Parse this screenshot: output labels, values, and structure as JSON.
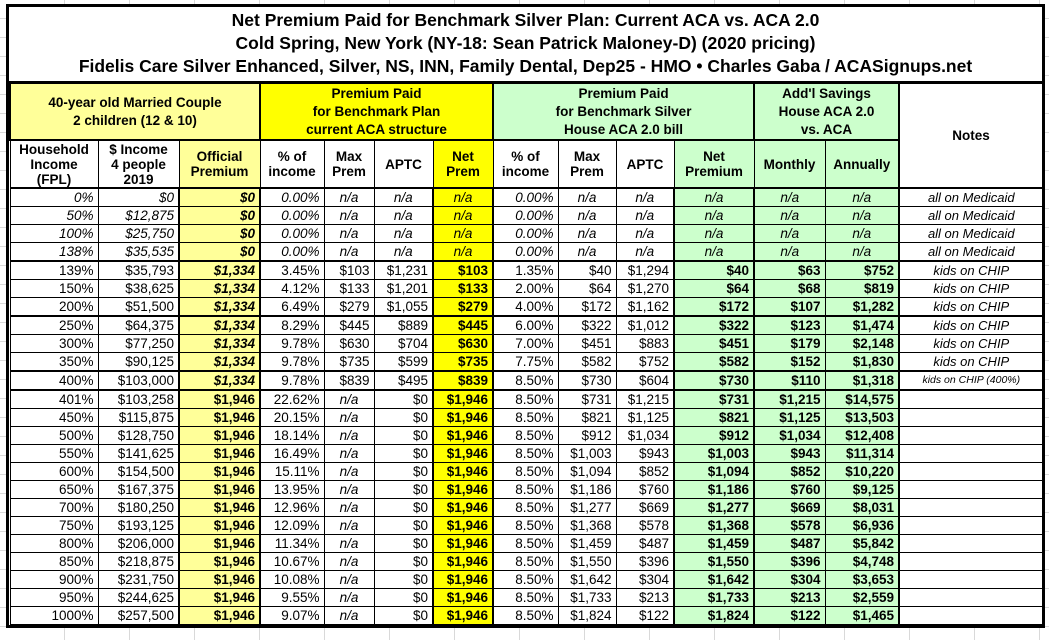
{
  "title": {
    "line1": "Net Premium Paid for Benchmark Silver Plan: Current ACA vs. ACA 2.0",
    "line2": "Cold Spring, New York (NY-18: Sean Patrick Maloney-D) (2020 pricing)",
    "line3": "Fidelis Care Silver Enhanced, Silver, NS, INN, Family Dental, Dep25 - HMO • Charles Gaba / ACASignups.net"
  },
  "groups": {
    "household": "40-year old Married Couple\n2 children (12 & 10)",
    "aca": "Premium Paid\nfor Benchmark Plan\ncurrent ACA structure",
    "aca2": "Premium Paid\nfor Benchmark Silver\nHouse ACA 2.0 bill",
    "savings": "Add'l Savings\nHouse ACA 2.0\nvs. ACA",
    "notes": "Notes"
  },
  "columns": [
    "Household\nIncome\n(FPL)",
    "$ Income\n4 people\n2019",
    "Official\nPremium",
    "% of\nincome",
    "Max\nPrem",
    "APTC",
    "Net\nPrem",
    "% of\nincome",
    "Max\nPrem",
    "APTC",
    "Net\nPremium",
    "Monthly",
    "Annually"
  ],
  "colors": {
    "pale_yellow": "#ffff99",
    "bright_yellow": "#ffff00",
    "light_green": "#ccffcc",
    "border": "#000000",
    "text": "#000000"
  },
  "rows": [
    {
      "group": "medicaid",
      "cells": [
        "0%",
        "$0",
        "$0",
        "0.00%",
        "n/a",
        "n/a",
        "n/a",
        "0.00%",
        "n/a",
        "n/a",
        "n/a",
        "n/a",
        "n/a",
        "all on Medicaid"
      ]
    },
    {
      "group": "medicaid",
      "cells": [
        "50%",
        "$12,875",
        "$0",
        "0.00%",
        "n/a",
        "n/a",
        "n/a",
        "0.00%",
        "n/a",
        "n/a",
        "n/a",
        "n/a",
        "n/a",
        "all on Medicaid"
      ]
    },
    {
      "group": "medicaid",
      "cells": [
        "100%",
        "$25,750",
        "$0",
        "0.00%",
        "n/a",
        "n/a",
        "n/a",
        "0.00%",
        "n/a",
        "n/a",
        "n/a",
        "n/a",
        "n/a",
        "all on Medicaid"
      ]
    },
    {
      "group": "medicaid",
      "cells": [
        "138%",
        "$35,535",
        "$0",
        "0.00%",
        "n/a",
        "n/a",
        "n/a",
        "0.00%",
        "n/a",
        "n/a",
        "n/a",
        "n/a",
        "n/a",
        "all on Medicaid"
      ]
    },
    {
      "group": "chip",
      "cells": [
        "139%",
        "$35,793",
        "$1,334",
        "3.45%",
        "$103",
        "$1,231",
        "$103",
        "1.35%",
        "$40",
        "$1,294",
        "$40",
        "$63",
        "$752",
        "kids on CHIP"
      ]
    },
    {
      "group": "chip",
      "cells": [
        "150%",
        "$38,625",
        "$1,334",
        "4.12%",
        "$133",
        "$1,201",
        "$133",
        "2.00%",
        "$64",
        "$1,270",
        "$64",
        "$68",
        "$819",
        "kids on CHIP"
      ]
    },
    {
      "group": "chip",
      "cells": [
        "200%",
        "$51,500",
        "$1,334",
        "6.49%",
        "$279",
        "$1,055",
        "$279",
        "4.00%",
        "$172",
        "$1,162",
        "$172",
        "$107",
        "$1,282",
        "kids on CHIP"
      ]
    },
    {
      "group": "chip",
      "cells": [
        "250%",
        "$64,375",
        "$1,334",
        "8.29%",
        "$445",
        "$889",
        "$445",
        "6.00%",
        "$322",
        "$1,012",
        "$322",
        "$123",
        "$1,474",
        "kids on CHIP"
      ]
    },
    {
      "group": "chip",
      "cells": [
        "300%",
        "$77,250",
        "$1,334",
        "9.78%",
        "$630",
        "$704",
        "$630",
        "7.00%",
        "$451",
        "$883",
        "$451",
        "$179",
        "$2,148",
        "kids on CHIP"
      ]
    },
    {
      "group": "chip",
      "cells": [
        "350%",
        "$90,125",
        "$1,334",
        "9.78%",
        "$735",
        "$599",
        "$735",
        "7.75%",
        "$582",
        "$752",
        "$582",
        "$152",
        "$1,830",
        "kids on CHIP"
      ]
    },
    {
      "group": "chip400",
      "cells": [
        "400%",
        "$103,000",
        "$1,334",
        "9.78%",
        "$839",
        "$495",
        "$839",
        "8.50%",
        "$730",
        "$604",
        "$730",
        "$110",
        "$1,318",
        "kids on CHIP (400%)"
      ]
    },
    {
      "group": "full",
      "cells": [
        "401%",
        "$103,258",
        "$1,946",
        "22.62%",
        "n/a",
        "$0",
        "$1,946",
        "8.50%",
        "$731",
        "$1,215",
        "$731",
        "$1,215",
        "$14,575",
        ""
      ]
    },
    {
      "group": "full",
      "cells": [
        "450%",
        "$115,875",
        "$1,946",
        "20.15%",
        "n/a",
        "$0",
        "$1,946",
        "8.50%",
        "$821",
        "$1,125",
        "$821",
        "$1,125",
        "$13,503",
        ""
      ]
    },
    {
      "group": "full",
      "cells": [
        "500%",
        "$128,750",
        "$1,946",
        "18.14%",
        "n/a",
        "$0",
        "$1,946",
        "8.50%",
        "$912",
        "$1,034",
        "$912",
        "$1,034",
        "$12,408",
        ""
      ]
    },
    {
      "group": "full",
      "cells": [
        "550%",
        "$141,625",
        "$1,946",
        "16.49%",
        "n/a",
        "$0",
        "$1,946",
        "8.50%",
        "$1,003",
        "$943",
        "$1,003",
        "$943",
        "$11,314",
        ""
      ]
    },
    {
      "group": "full",
      "cells": [
        "600%",
        "$154,500",
        "$1,946",
        "15.11%",
        "n/a",
        "$0",
        "$1,946",
        "8.50%",
        "$1,094",
        "$852",
        "$1,094",
        "$852",
        "$10,220",
        ""
      ]
    },
    {
      "group": "full",
      "cells": [
        "650%",
        "$167,375",
        "$1,946",
        "13.95%",
        "n/a",
        "$0",
        "$1,946",
        "8.50%",
        "$1,186",
        "$760",
        "$1,186",
        "$760",
        "$9,125",
        ""
      ]
    },
    {
      "group": "full",
      "cells": [
        "700%",
        "$180,250",
        "$1,946",
        "12.96%",
        "n/a",
        "$0",
        "$1,946",
        "8.50%",
        "$1,277",
        "$669",
        "$1,277",
        "$669",
        "$8,031",
        ""
      ]
    },
    {
      "group": "full",
      "cells": [
        "750%",
        "$193,125",
        "$1,946",
        "12.09%",
        "n/a",
        "$0",
        "$1,946",
        "8.50%",
        "$1,368",
        "$578",
        "$1,368",
        "$578",
        "$6,936",
        ""
      ]
    },
    {
      "group": "full",
      "cells": [
        "800%",
        "$206,000",
        "$1,946",
        "11.34%",
        "n/a",
        "$0",
        "$1,946",
        "8.50%",
        "$1,459",
        "$487",
        "$1,459",
        "$487",
        "$5,842",
        ""
      ]
    },
    {
      "group": "full",
      "cells": [
        "850%",
        "$218,875",
        "$1,946",
        "10.67%",
        "n/a",
        "$0",
        "$1,946",
        "8.50%",
        "$1,550",
        "$396",
        "$1,550",
        "$396",
        "$4,748",
        ""
      ]
    },
    {
      "group": "full",
      "cells": [
        "900%",
        "$231,750",
        "$1,946",
        "10.08%",
        "n/a",
        "$0",
        "$1,946",
        "8.50%",
        "$1,642",
        "$304",
        "$1,642",
        "$304",
        "$3,653",
        ""
      ]
    },
    {
      "group": "full",
      "cells": [
        "950%",
        "$244,625",
        "$1,946",
        "9.55%",
        "n/a",
        "$0",
        "$1,946",
        "8.50%",
        "$1,733",
        "$213",
        "$1,733",
        "$213",
        "$2,559",
        ""
      ]
    },
    {
      "group": "full",
      "cells": [
        "1000%",
        "$257,500",
        "$1,946",
        "9.07%",
        "n/a",
        "$0",
        "$1,946",
        "8.50%",
        "$1,824",
        "$122",
        "$1,824",
        "$122",
        "$1,465",
        ""
      ]
    }
  ]
}
